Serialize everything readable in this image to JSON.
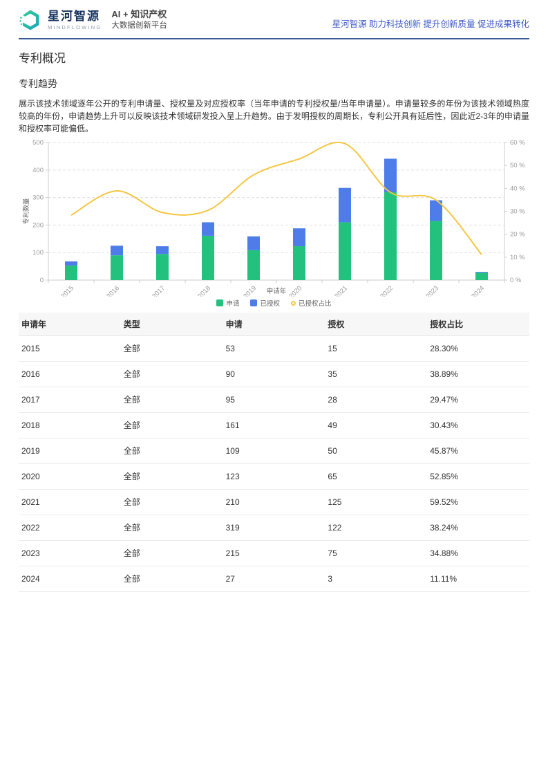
{
  "header": {
    "logo": {
      "name": "星河智源",
      "sub": "MINDFLOWING",
      "tagline1": "AI + 知识产权",
      "tagline2": "大数据创新平台"
    },
    "slogan": "星河智源 助力科技创新 提升创新质量 促进成果转化"
  },
  "page": {
    "title": "专利概况",
    "section_title": "专利趋势",
    "description": "展示该技术领域逐年公开的专利申请量、授权量及对应授权率（当年申请的专利授权量/当年申请量）。申请量较多的年份为该技术领域热度较高的年份，申请趋势上升可以反映该技术领域研发投入呈上升趋势。由于发明授权的周期长，专利公开具有延后性，因此近2-3年的申请量和授权率可能偏低。"
  },
  "chart_data": {
    "type": "bar",
    "subtype": "stacked-bar-with-line",
    "categories": [
      "2015",
      "2016",
      "2017",
      "2018",
      "2019",
      "2020",
      "2021",
      "2022",
      "2023",
      "2024"
    ],
    "series": [
      {
        "name": "申请",
        "type": "bar",
        "stack": true,
        "axis": "left",
        "color": "#23c17e",
        "values": [
          53,
          90,
          95,
          161,
          109,
          123,
          210,
          319,
          215,
          27
        ]
      },
      {
        "name": "已授权",
        "type": "bar",
        "stack": true,
        "axis": "left",
        "color": "#4e7ce9",
        "values": [
          15,
          35,
          28,
          49,
          50,
          65,
          125,
          122,
          75,
          3
        ]
      },
      {
        "name": "已授权占比",
        "type": "line",
        "axis": "right",
        "color": "#f5c642",
        "smooth": true,
        "values": [
          28.3,
          38.89,
          29.47,
          30.43,
          45.87,
          52.85,
          59.52,
          38.24,
          34.88,
          11.11
        ]
      }
    ],
    "xlabel": "申请年",
    "ylabel": "专利数量",
    "left_axis": {
      "min": 0,
      "max": 500,
      "ticks": [
        0,
        100,
        200,
        300,
        400,
        500
      ]
    },
    "right_axis": {
      "min": 0,
      "max": 60,
      "tick_labels": [
        "0 %",
        "10 %",
        "20 %",
        "30 %",
        "40 %",
        "50 %",
        "60 %"
      ]
    },
    "legend": [
      "申请",
      "已授权",
      "已授权占比"
    ],
    "legend_position": "bottom",
    "grid": "dashed-horizontal"
  },
  "table": {
    "columns": [
      "申请年",
      "类型",
      "申请",
      "授权",
      "授权占比"
    ],
    "rows": [
      [
        "2015",
        "全部",
        "53",
        "15",
        "28.30%"
      ],
      [
        "2016",
        "全部",
        "90",
        "35",
        "38.89%"
      ],
      [
        "2017",
        "全部",
        "95",
        "28",
        "29.47%"
      ],
      [
        "2018",
        "全部",
        "161",
        "49",
        "30.43%"
      ],
      [
        "2019",
        "全部",
        "109",
        "50",
        "45.87%"
      ],
      [
        "2020",
        "全部",
        "123",
        "65",
        "52.85%"
      ],
      [
        "2021",
        "全部",
        "210",
        "125",
        "59.52%"
      ],
      [
        "2022",
        "全部",
        "319",
        "122",
        "38.24%"
      ],
      [
        "2023",
        "全部",
        "215",
        "75",
        "34.88%"
      ],
      [
        "2024",
        "全部",
        "27",
        "3",
        "11.11%"
      ]
    ]
  },
  "colors": {
    "bar_green": "#23c17e",
    "bar_blue": "#4e7ce9",
    "line_yellow": "#f5c642",
    "slogan_blue": "#3f5ac8",
    "header_divider": "#3c5a96",
    "axis_text": "#999999",
    "grid_line": "#e0e0e0",
    "table_header_bg": "#f7f7f7"
  }
}
